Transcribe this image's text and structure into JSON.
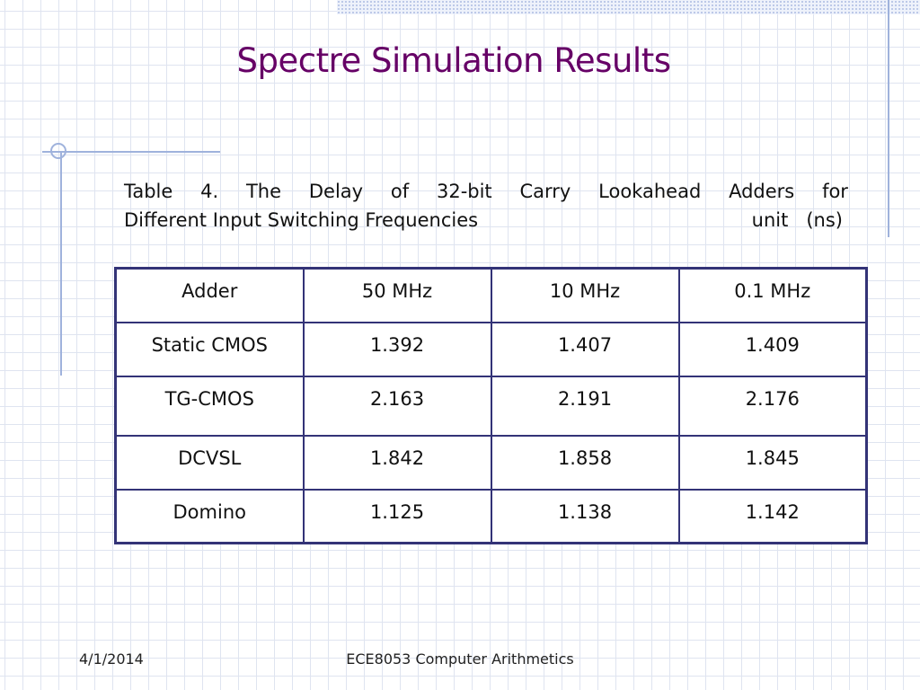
{
  "slide": {
    "title": "Spectre Simulation Results",
    "caption": {
      "line1_words": [
        "Table",
        "4.",
        "The",
        "Delay",
        "of",
        "32-bit",
        "Carry",
        "Lookahead",
        "Adders",
        "for"
      ],
      "line2_text": "Different Input Switching Frequencies",
      "unit_text": "unit   (ns)"
    },
    "table": {
      "headers": [
        "Adder",
        "50 MHz",
        "10 MHz",
        "0.1 MHz"
      ],
      "rows": [
        [
          "Static CMOS",
          "1.392",
          "1.407",
          "1.409"
        ],
        [
          "TG-CMOS",
          "2.163",
          "2.191",
          "2.176"
        ],
        [
          "DCVSL",
          "1.842",
          "1.858",
          "1.845"
        ],
        [
          "Domino",
          "1.125",
          "1.138",
          "1.142"
        ]
      ]
    },
    "footer": {
      "date": "4/1/2014",
      "course": "ECE8053 Computer Arithmetics"
    }
  },
  "colors": {
    "title": "#660066",
    "table_border": "#333377",
    "accent_lines": "#9fb2dc"
  }
}
